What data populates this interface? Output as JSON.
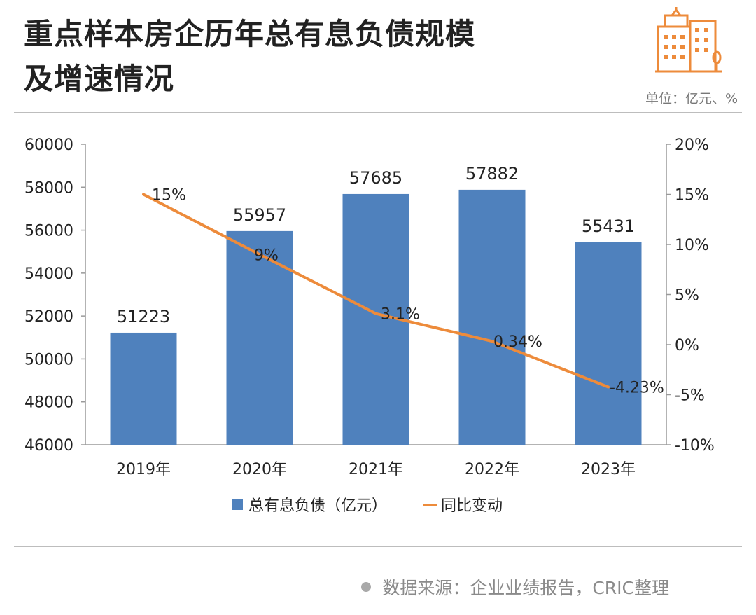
{
  "title_line1": "重点样本房企历年总有息负债规模",
  "title_line2": "及增速情况",
  "unit": "单位：亿元、%",
  "source": "数据来源：企业业绩报告，CRIC整理",
  "icon": "building-icon",
  "colors": {
    "bar": "#4f81bd",
    "line": "#ed8b3b",
    "icon": "#ed8b3b"
  },
  "chart_data": {
    "type": "bar",
    "categories": [
      "2019年",
      "2020年",
      "2021年",
      "2022年",
      "2023年"
    ],
    "series": [
      {
        "name": "总有息负债（亿元）",
        "type": "bar",
        "axis": "left",
        "values": [
          51223,
          55957,
          57685,
          57882,
          55431
        ],
        "labels": [
          "51223",
          "55957",
          "57685",
          "57882",
          "55431"
        ]
      },
      {
        "name": "同比变动",
        "type": "line",
        "axis": "right",
        "values": [
          15,
          9,
          3.1,
          0.34,
          -4.23
        ],
        "labels": [
          "15%",
          "9%",
          "3.1%",
          "0.34%",
          "-4.23%"
        ]
      }
    ],
    "y_left": {
      "min": 46000,
      "max": 60000,
      "ticks": [
        "46000",
        "48000",
        "50000",
        "52000",
        "54000",
        "56000",
        "58000",
        "60000"
      ]
    },
    "y_right": {
      "min": -10,
      "max": 20,
      "ticks": [
        "-10%",
        "-5%",
        "0%",
        "5%",
        "10%",
        "15%",
        "20%"
      ]
    },
    "grid": false,
    "legend_position": "bottom"
  }
}
